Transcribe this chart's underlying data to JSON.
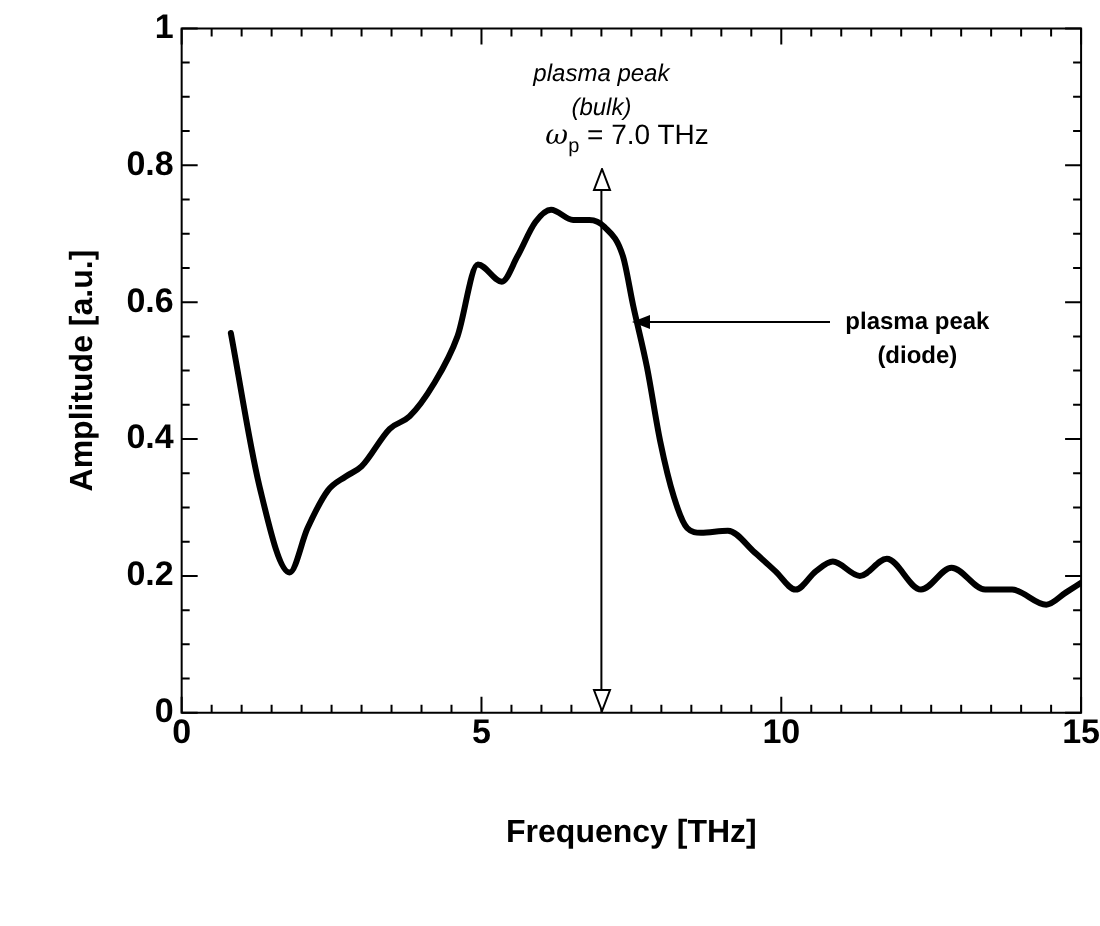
{
  "chart_data": {
    "type": "line",
    "xlabel": "Frequency [THz]",
    "ylabel": "Amplitude [a.u.]",
    "xlim": [
      0,
      15
    ],
    "xticks": [
      0,
      5,
      10,
      15
    ],
    "ylim": [
      0,
      1
    ],
    "yticks": [
      0,
      0.2,
      0.4,
      0.6,
      0.8,
      1
    ],
    "grid": false,
    "legend": false,
    "marker": "none",
    "line_style": "solid",
    "series": [
      {
        "color": "#000000",
        "x": [
          0.82,
          1.3,
          1.8,
          2.1,
          2.44,
          2.73,
          3.0,
          3.47,
          3.8,
          4.2,
          4.6,
          4.94,
          5.34,
          5.6,
          5.9,
          6.16,
          6.53,
          6.8,
          7.05,
          7.36,
          7.53,
          7.76,
          7.98,
          8.21,
          8.43,
          8.66,
          9.11,
          9.56,
          9.9,
          10.24,
          10.58,
          10.86,
          11.31,
          11.76,
          12.33,
          12.84,
          13.4,
          13.85,
          14.42,
          14.75,
          15
        ],
        "values": [
          0.555,
          0.33,
          0.205,
          0.27,
          0.325,
          0.345,
          0.36,
          0.415,
          0.433,
          0.48,
          0.55,
          0.655,
          0.63,
          0.667,
          0.717,
          0.735,
          0.72,
          0.72,
          0.71,
          0.667,
          0.595,
          0.505,
          0.397,
          0.315,
          0.27,
          0.263,
          0.266,
          0.234,
          0.207,
          0.18,
          0.207,
          0.221,
          0.2,
          0.225,
          0.18,
          0.212,
          0.18,
          0.18,
          0.158,
          0.176,
          0.19
        ]
      }
    ],
    "ref_lines": [
      {
        "axis": "x",
        "value": 7,
        "label": "ω$_{p}$ = 7.0 THz",
        "color": "#000000"
      }
    ],
    "annotations": [
      "plasma peak\n(bulk)",
      {
        "text": "plasma peak\n(diode)",
        "x": 7.5,
        "y": 0.57
      }
    ]
  }
}
